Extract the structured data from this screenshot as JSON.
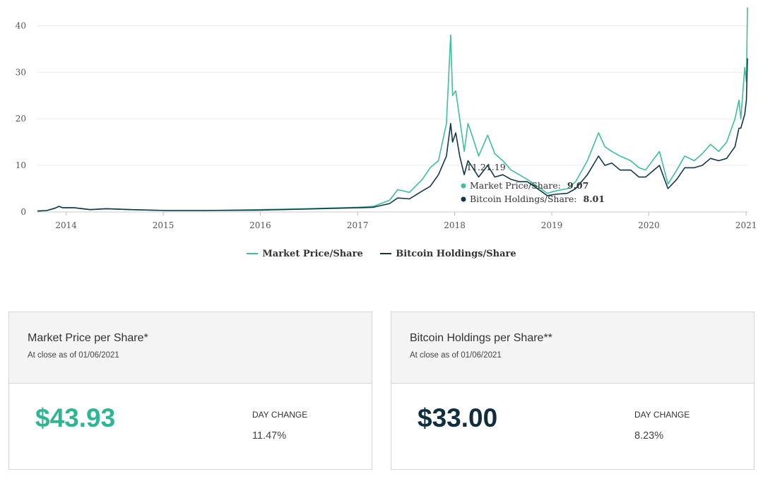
{
  "chart_data": {
    "type": "line",
    "ylim": [
      0,
      44
    ],
    "yticks": [
      0,
      10,
      20,
      30,
      40
    ],
    "ytick_labels": [
      "0",
      "10",
      "20",
      "30",
      "40"
    ],
    "xlim": [
      "2013-09-15",
      "2021-01-06"
    ],
    "xticks": [
      "2014-01-01",
      "2015-01-01",
      "2016-01-01",
      "2017-01-01",
      "2018-01-01",
      "2019-01-01",
      "2020-01-01",
      "2021-01-01"
    ],
    "xtick_labels": [
      "2014",
      "2015",
      "2016",
      "2017",
      "2018",
      "2019",
      "2020",
      "2021"
    ],
    "grid": "horizontal",
    "legend_position": "bottom-center",
    "series": [
      {
        "name": "Market Price/Share",
        "color": "#3dbf9c",
        "points": [
          [
            "2013-09-15",
            0.2
          ],
          [
            "2013-10-20",
            0.3
          ],
          [
            "2013-11-20",
            0.8
          ],
          [
            "2013-12-05",
            1.2
          ],
          [
            "2013-12-20",
            0.9
          ],
          [
            "2014-02-01",
            0.9
          ],
          [
            "2014-04-01",
            0.5
          ],
          [
            "2014-06-01",
            0.7
          ],
          [
            "2014-09-01",
            0.5
          ],
          [
            "2015-01-15",
            0.3
          ],
          [
            "2015-06-01",
            0.3
          ],
          [
            "2016-01-01",
            0.5
          ],
          [
            "2016-06-15",
            0.7
          ],
          [
            "2017-01-01",
            1.0
          ],
          [
            "2017-03-01",
            1.2
          ],
          [
            "2017-05-01",
            2.5
          ],
          [
            "2017-06-01",
            4.8
          ],
          [
            "2017-07-15",
            4.2
          ],
          [
            "2017-09-01",
            7.0
          ],
          [
            "2017-10-01",
            9.5
          ],
          [
            "2017-11-01",
            11.0
          ],
          [
            "2017-12-01",
            19.0
          ],
          [
            "2017-12-17",
            38.0
          ],
          [
            "2017-12-24",
            25.0
          ],
          [
            "2018-01-05",
            26.0
          ],
          [
            "2018-01-20",
            20.0
          ],
          [
            "2018-02-06",
            13.0
          ],
          [
            "2018-02-20",
            19.0
          ],
          [
            "2018-03-10",
            16.0
          ],
          [
            "2018-04-01",
            12.0
          ],
          [
            "2018-05-05",
            16.5
          ],
          [
            "2018-06-01",
            12.5
          ],
          [
            "2018-07-01",
            11.0
          ],
          [
            "2018-08-01",
            9.0
          ],
          [
            "2018-09-01",
            8.0
          ],
          [
            "2018-10-01",
            7.0
          ],
          [
            "2018-11-21",
            5.0
          ],
          [
            "2018-12-15",
            4.0
          ],
          [
            "2019-01-15",
            4.5
          ],
          [
            "2019-03-01",
            5.0
          ],
          [
            "2019-04-01",
            6.5
          ],
          [
            "2019-05-15",
            11.0
          ],
          [
            "2019-06-26",
            17.0
          ],
          [
            "2019-07-20",
            14.0
          ],
          [
            "2019-08-15",
            13.0
          ],
          [
            "2019-09-15",
            12.0
          ],
          [
            "2019-10-25",
            11.0
          ],
          [
            "2019-11-25",
            9.5
          ],
          [
            "2019-12-20",
            9.0
          ],
          [
            "2020-02-10",
            13.0
          ],
          [
            "2020-03-13",
            6.0
          ],
          [
            "2020-04-15",
            9.0
          ],
          [
            "2020-05-15",
            12.0
          ],
          [
            "2020-06-20",
            11.0
          ],
          [
            "2020-07-20",
            12.5
          ],
          [
            "2020-08-20",
            14.5
          ],
          [
            "2020-09-20",
            13.0
          ],
          [
            "2020-10-20",
            15.0
          ],
          [
            "2020-11-20",
            20.0
          ],
          [
            "2020-12-05",
            24.0
          ],
          [
            "2020-12-12",
            20.0
          ],
          [
            "2020-12-27",
            31.0
          ],
          [
            "2021-01-02",
            28.0
          ],
          [
            "2021-01-06",
            43.93
          ]
        ]
      },
      {
        "name": "Bitcoin Holdings/Share",
        "color": "#13364a",
        "points": [
          [
            "2013-09-15",
            0.2
          ],
          [
            "2013-10-20",
            0.3
          ],
          [
            "2013-11-20",
            0.8
          ],
          [
            "2013-12-05",
            1.2
          ],
          [
            "2013-12-20",
            0.9
          ],
          [
            "2014-02-01",
            0.9
          ],
          [
            "2014-04-01",
            0.5
          ],
          [
            "2014-06-01",
            0.7
          ],
          [
            "2014-09-01",
            0.5
          ],
          [
            "2015-01-15",
            0.3
          ],
          [
            "2015-06-01",
            0.3
          ],
          [
            "2016-01-01",
            0.4
          ],
          [
            "2016-06-15",
            0.6
          ],
          [
            "2017-01-01",
            0.9
          ],
          [
            "2017-03-01",
            1.0
          ],
          [
            "2017-05-01",
            1.8
          ],
          [
            "2017-06-01",
            3.0
          ],
          [
            "2017-07-15",
            2.8
          ],
          [
            "2017-09-01",
            4.5
          ],
          [
            "2017-10-01",
            5.5
          ],
          [
            "2017-11-01",
            8.0
          ],
          [
            "2017-12-01",
            12.0
          ],
          [
            "2017-12-17",
            19.0
          ],
          [
            "2017-12-24",
            15.0
          ],
          [
            "2018-01-05",
            17.0
          ],
          [
            "2018-01-20",
            12.0
          ],
          [
            "2018-02-06",
            8.0
          ],
          [
            "2018-02-20",
            11.0
          ],
          [
            "2018-03-10",
            9.5
          ],
          [
            "2018-04-01",
            7.5
          ],
          [
            "2018-05-05",
            10.0
          ],
          [
            "2018-06-01",
            7.5
          ],
          [
            "2018-07-01",
            8.0
          ],
          [
            "2018-08-01",
            7.0
          ],
          [
            "2018-09-01",
            6.5
          ],
          [
            "2018-10-01",
            6.5
          ],
          [
            "2018-11-21",
            4.5
          ],
          [
            "2018-12-15",
            3.5
          ],
          [
            "2019-01-15",
            3.8
          ],
          [
            "2019-03-01",
            4.0
          ],
          [
            "2019-04-01",
            5.0
          ],
          [
            "2019-05-15",
            8.0
          ],
          [
            "2019-06-26",
            12.0
          ],
          [
            "2019-07-20",
            10.0
          ],
          [
            "2019-08-15",
            10.5
          ],
          [
            "2019-09-15",
            9.0
          ],
          [
            "2019-10-25",
            9.0
          ],
          [
            "2019-11-25",
            7.5
          ],
          [
            "2019-12-20",
            7.5
          ],
          [
            "2020-02-10",
            10.0
          ],
          [
            "2020-03-13",
            5.0
          ],
          [
            "2020-04-15",
            7.0
          ],
          [
            "2020-05-15",
            9.5
          ],
          [
            "2020-06-20",
            9.5
          ],
          [
            "2020-07-20",
            10.0
          ],
          [
            "2020-08-20",
            11.5
          ],
          [
            "2020-09-20",
            11.0
          ],
          [
            "2020-10-20",
            11.5
          ],
          [
            "2020-11-20",
            14.0
          ],
          [
            "2020-12-05",
            18.0
          ],
          [
            "2020-12-12",
            18.0
          ],
          [
            "2020-12-27",
            21.0
          ],
          [
            "2021-01-02",
            24.0
          ],
          [
            "2021-01-06",
            33.0
          ]
        ]
      }
    ],
    "tooltip": {
      "date": "11.21.19",
      "items": [
        {
          "label": "Market Price/Share:",
          "value": "9.07",
          "color": "#3dbf9c"
        },
        {
          "label": "Bitcoin Holdings/Share:",
          "value": "8.01",
          "color": "#13364a"
        }
      ]
    }
  },
  "cards": {
    "market": {
      "title": "Market Price per Share*",
      "subtitle": "At close as of 01/06/2021",
      "value": "$43.93",
      "value_color": "#2eb593",
      "day_change_label": "DAY CHANGE",
      "day_change_value": "11.47%"
    },
    "bitcoin": {
      "title": "Bitcoin Holdings per Share**",
      "subtitle": "At close as of 01/06/2021",
      "value": "$33.00",
      "value_color": "#0f2f3f",
      "day_change_label": "DAY CHANGE",
      "day_change_value": "8.23%"
    }
  }
}
